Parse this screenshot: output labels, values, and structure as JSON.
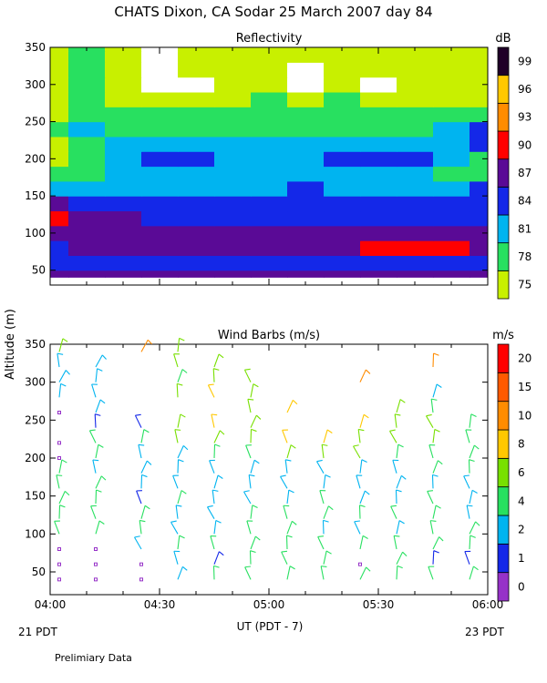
{
  "title": "CHATS Dixon, CA   Sodar   25 March 2007   day   84",
  "ylabel": "Altitude  (m)",
  "footer": {
    "xlabel": "UT  (PDT - 7)",
    "left_date": "21 PDT",
    "right_date": "23 PDT",
    "note": "Prelimiary Data"
  },
  "chart_data": [
    {
      "type": "heatmap",
      "title": "Reflectivity",
      "colorbar_unit": "dB",
      "x_ticks": [
        "04:00",
        "04:30",
        "05:00",
        "05:30",
        "06:00"
      ],
      "xlim": [
        0,
        120
      ],
      "ylim": [
        30,
        350
      ],
      "y_ticks": [
        50,
        100,
        150,
        200,
        250,
        300,
        350
      ],
      "levels": [
        75,
        78,
        81,
        84,
        87,
        90,
        93,
        96,
        99
      ],
      "level_colors": [
        "#c8f000",
        "#28e060",
        "#00b4f0",
        "#1428e8",
        "#5a0a96",
        "#ff0000",
        "#ff8c00",
        "#ffc800",
        "#200028"
      ],
      "x": [
        0,
        10,
        20,
        30,
        40,
        50,
        60,
        70,
        80,
        90,
        100,
        110,
        120
      ],
      "y": [
        40,
        60,
        80,
        100,
        120,
        140,
        160,
        180,
        200,
        220,
        240,
        260,
        280,
        300,
        320,
        340,
        350
      ],
      "z": [
        [
          87,
          87,
          87,
          87,
          87,
          87,
          87,
          87,
          87,
          87,
          87,
          87,
          87
        ],
        [
          85,
          84.5,
          85,
          86,
          84.5,
          84.5,
          86,
          86,
          85,
          85,
          85,
          85,
          84.5
        ],
        [
          85,
          87,
          87,
          89,
          87,
          87,
          87,
          87,
          87,
          90.5,
          91,
          92,
          88
        ],
        [
          89,
          89,
          88,
          87,
          87,
          87,
          87,
          87,
          87,
          87,
          87,
          87,
          87
        ],
        [
          91,
          88,
          87,
          86,
          86,
          86,
          86,
          86,
          86,
          86,
          86,
          86,
          86
        ],
        [
          87,
          86,
          86,
          85,
          85,
          85,
          84.5,
          84.5,
          84.5,
          84.5,
          84.5,
          84.5,
          84.5
        ],
        [
          82,
          82,
          82,
          82,
          82,
          82.5,
          83,
          84.5,
          83,
          83,
          83,
          83,
          84
        ],
        [
          80,
          80.5,
          81.5,
          82,
          82,
          82,
          83,
          83,
          82,
          82,
          82,
          80,
          79
        ],
        [
          77,
          79,
          82,
          84.5,
          85,
          83,
          82,
          82,
          84.5,
          85,
          85,
          82,
          79
        ],
        [
          77,
          79,
          82,
          82,
          82,
          82,
          82,
          82,
          82,
          82,
          82,
          82,
          84
        ],
        [
          79,
          82,
          80,
          79,
          79,
          79,
          80,
          79,
          79,
          79,
          79,
          82,
          84
        ],
        [
          76,
          79,
          78,
          79,
          79,
          79,
          79,
          79,
          79,
          79,
          79,
          79,
          80
        ],
        [
          76,
          79,
          77,
          76,
          76,
          76,
          78,
          76,
          78,
          76,
          76,
          76,
          76
        ],
        [
          76,
          78,
          76,
          72,
          72,
          76,
          76,
          74,
          76,
          73,
          76,
          76,
          76
        ],
        [
          76,
          78,
          76,
          73,
          76,
          76,
          76,
          72,
          76,
          76,
          76,
          76,
          76
        ],
        [
          77,
          78,
          76,
          72,
          76,
          76,
          76,
          76,
          76,
          76,
          76,
          76,
          76
        ],
        [
          77,
          78,
          76,
          73,
          76,
          76,
          76,
          76,
          76,
          76,
          76,
          76,
          76
        ]
      ]
    },
    {
      "type": "scatter",
      "title": "Wind Barbs (m/s)",
      "colorbar_unit": "m/s",
      "x_ticks": [
        "04:00",
        "04:30",
        "05:00",
        "05:30",
        "06:00"
      ],
      "xlim": [
        0,
        120
      ],
      "ylim": [
        20,
        350
      ],
      "y_ticks": [
        50,
        100,
        150,
        200,
        250,
        300,
        350
      ],
      "speed_levels": [
        0,
        1,
        2,
        4,
        6,
        8,
        10,
        15,
        20
      ],
      "level_colors": [
        "#9632c8",
        "#1428e8",
        "#00b4f0",
        "#28e060",
        "#78e000",
        "#ffc800",
        "#ff8c00",
        "#ff5a00",
        "#ff0000"
      ],
      "x": [
        2.5,
        12.5,
        25,
        35,
        45,
        55,
        65,
        75,
        85,
        95,
        105,
        115
      ],
      "altitudes": [
        40,
        60,
        80,
        100,
        120,
        140,
        160,
        180,
        200,
        220,
        240,
        260,
        280,
        300,
        320,
        340
      ],
      "speeds": [
        [
          0,
          0,
          0,
          2,
          4,
          4,
          4,
          4,
          4,
          4,
          4,
          4
        ],
        [
          0,
          0,
          0,
          3,
          1,
          4,
          4,
          4,
          0,
          4,
          1,
          1
        ],
        [
          0,
          0,
          3,
          4,
          4,
          4,
          4,
          4,
          4,
          4,
          4,
          4
        ],
        [
          4,
          4,
          4,
          3,
          2,
          4,
          4,
          3,
          3,
          3,
          4,
          4
        ],
        [
          4,
          4,
          4,
          3,
          3,
          4,
          4,
          4,
          4,
          4,
          4,
          3
        ],
        [
          4,
          4,
          1,
          4,
          3,
          3,
          3,
          4,
          3,
          3,
          4,
          3
        ],
        [
          4,
          4,
          3,
          3,
          3,
          3,
          3,
          3,
          3,
          3,
          3,
          3
        ],
        [
          4,
          3,
          3,
          3,
          3,
          3,
          3,
          3,
          3,
          3,
          4,
          4
        ],
        [
          0,
          4,
          3,
          3,
          4,
          4,
          6,
          6,
          6,
          4,
          4,
          4
        ],
        [
          0,
          4,
          4,
          6,
          6,
          6,
          8,
          8,
          6,
          6,
          6,
          4
        ],
        [
          null,
          1,
          1,
          6,
          8,
          6,
          null,
          null,
          8,
          6,
          6,
          5
        ],
        [
          0,
          3,
          null,
          null,
          null,
          6,
          8,
          null,
          null,
          6,
          4,
          null
        ],
        [
          3,
          3,
          null,
          6,
          8,
          6,
          null,
          null,
          null,
          null,
          3,
          null
        ],
        [
          3,
          3,
          null,
          5,
          6,
          6,
          null,
          null,
          12,
          null,
          null,
          null
        ],
        [
          3,
          3,
          null,
          6,
          6,
          null,
          null,
          null,
          null,
          null,
          10,
          null
        ],
        [
          6,
          null,
          10,
          6,
          null,
          null,
          null,
          null,
          null,
          null,
          null,
          null
        ]
      ]
    }
  ]
}
